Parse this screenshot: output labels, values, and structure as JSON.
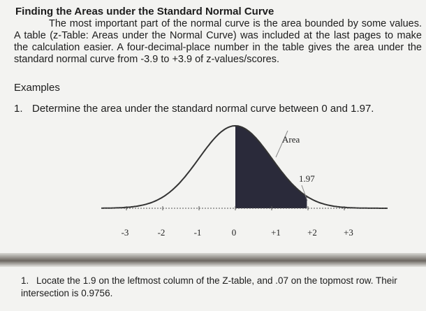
{
  "heading": "Finding the Areas under the Standard Normal Curve",
  "paragraph": "The most important part of the normal curve is the area bounded by some values. A table (z-Table: Areas under the Normal Curve) was included at the last pages to make the calculation easier. A four-decimal-place number in the table gives the area under the standard normal curve from -3.9 to +3.9 of z-values/scores.",
  "examples_label": "Examples",
  "example": {
    "number": "1.",
    "text": "Determine the area under the standard normal curve between 0 and 1.97."
  },
  "figure": {
    "area_label": "Area",
    "z_label": "1.97",
    "axis_labels": [
      "-3",
      "-2",
      "-1",
      "0",
      "+1",
      "+2",
      "+3"
    ]
  },
  "step": {
    "number": "1.",
    "text": "Locate the 1.9 on the leftmost column of the Z-table, and .07 on the topmost row. Their intersection is 0.9756."
  }
}
